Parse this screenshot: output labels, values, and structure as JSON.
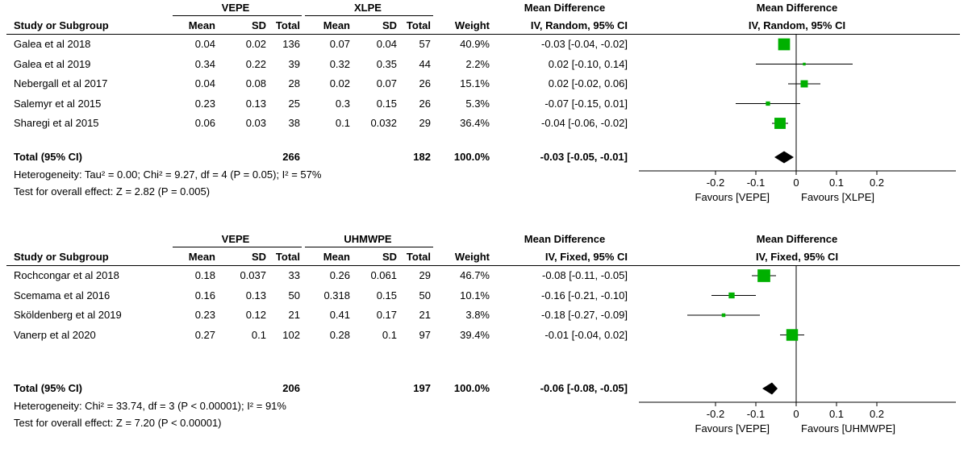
{
  "chart_data": [
    {
      "type": "forest",
      "group_headers": [
        "VEPE",
        "XLPE"
      ],
      "headers": {
        "md_title": "Mean Difference",
        "study": "Study or Subgroup",
        "mean": "Mean",
        "sd": "SD",
        "total": "Total",
        "weight": "Weight",
        "md_method": "IV, Random, 95% CI"
      },
      "plot_header": {
        "title": "Mean Difference",
        "method": "IV, Random, 95% CI"
      },
      "studies": [
        {
          "name": "Galea et al 2018",
          "e_mean": "0.04",
          "e_sd": "0.02",
          "e_total": "136",
          "c_mean": "0.07",
          "c_sd": "0.04",
          "c_total": "57",
          "weight": "40.9%",
          "ci_text": "-0.03 [-0.04, -0.02]",
          "md": -0.03,
          "lo": -0.04,
          "hi": -0.02,
          "w": 40.9
        },
        {
          "name": "Galea et al 2019",
          "e_mean": "0.34",
          "e_sd": "0.22",
          "e_total": "39",
          "c_mean": "0.32",
          "c_sd": "0.35",
          "c_total": "44",
          "weight": "2.2%",
          "ci_text": "0.02 [-0.10, 0.14]",
          "md": 0.02,
          "lo": -0.1,
          "hi": 0.14,
          "w": 2.2
        },
        {
          "name": "Nebergall et al 2017",
          "e_mean": "0.04",
          "e_sd": "0.08",
          "e_total": "28",
          "c_mean": "0.02",
          "c_sd": "0.07",
          "c_total": "26",
          "weight": "15.1%",
          "ci_text": "0.02 [-0.02, 0.06]",
          "md": 0.02,
          "lo": -0.02,
          "hi": 0.06,
          "w": 15.1
        },
        {
          "name": "Salemyr et al 2015",
          "e_mean": "0.23",
          "e_sd": "0.13",
          "e_total": "25",
          "c_mean": "0.3",
          "c_sd": "0.15",
          "c_total": "26",
          "weight": "5.3%",
          "ci_text": "-0.07 [-0.15, 0.01]",
          "md": -0.07,
          "lo": -0.15,
          "hi": 0.01,
          "w": 5.3
        },
        {
          "name": "Sharegi et al 2015",
          "e_mean": "0.06",
          "e_sd": "0.03",
          "e_total": "38",
          "c_mean": "0.1",
          "c_sd": "0.032",
          "c_total": "29",
          "weight": "36.4%",
          "ci_text": "-0.04 [-0.06, -0.02]",
          "md": -0.04,
          "lo": -0.06,
          "hi": -0.02,
          "w": 36.4
        }
      ],
      "total": {
        "label": "Total (95% CI)",
        "e_total": "266",
        "c_total": "182",
        "weight": "100.0%",
        "ci_text": "-0.03 [-0.05, -0.01]",
        "md": -0.03,
        "lo": -0.05,
        "hi": -0.01
      },
      "heterogeneity": "Heterogeneity: Tau² = 0.00; Chi² = 9.27, df = 4 (P = 0.05); I² = 57%",
      "overall": "Test for overall effect: Z = 2.82 (P = 0.005)",
      "axis": {
        "ticks": [
          -0.2,
          -0.1,
          0,
          0.1,
          0.2
        ],
        "tick_labels": [
          "-0.2",
          "-0.1",
          "0",
          "0.1",
          "0.2"
        ],
        "xlim": [
          -0.3,
          0.3
        ]
      },
      "favours_left": "Favours [VEPE]",
      "favours_right": "Favours [XLPE]",
      "colors": {
        "marker": "#00b000",
        "diamond": "#000000"
      }
    },
    {
      "type": "forest",
      "group_headers": [
        "VEPE",
        "UHMWPE"
      ],
      "headers": {
        "md_title": "Mean Difference",
        "study": "Study or Subgroup",
        "mean": "Mean",
        "sd": "SD",
        "total": "Total",
        "weight": "Weight",
        "md_method": "IV, Fixed, 95% CI"
      },
      "plot_header": {
        "title": "Mean Difference",
        "method": "IV, Fixed, 95% CI"
      },
      "studies": [
        {
          "name": "Rochcongar et al 2018",
          "e_mean": "0.18",
          "e_sd": "0.037",
          "e_total": "33",
          "c_mean": "0.26",
          "c_sd": "0.061",
          "c_total": "29",
          "weight": "46.7%",
          "ci_text": "-0.08 [-0.11, -0.05]",
          "md": -0.08,
          "lo": -0.11,
          "hi": -0.05,
          "w": 46.7
        },
        {
          "name": "Scemama et al 2016",
          "e_mean": "0.16",
          "e_sd": "0.13",
          "e_total": "50",
          "c_mean": "0.318",
          "c_sd": "0.15",
          "c_total": "50",
          "weight": "10.1%",
          "ci_text": "-0.16 [-0.21, -0.10]",
          "md": -0.16,
          "lo": -0.21,
          "hi": -0.1,
          "w": 10.1
        },
        {
          "name": "Sköldenberg et al 2019",
          "e_mean": "0.23",
          "e_sd": "0.12",
          "e_total": "21",
          "c_mean": "0.41",
          "c_sd": "0.17",
          "c_total": "21",
          "weight": "3.8%",
          "ci_text": "-0.18 [-0.27, -0.09]",
          "md": -0.18,
          "lo": -0.27,
          "hi": -0.09,
          "w": 3.8
        },
        {
          "name": "Vanerp et al 2020",
          "e_mean": "0.27",
          "e_sd": "0.1",
          "e_total": "102",
          "c_mean": "0.28",
          "c_sd": "0.1",
          "c_total": "97",
          "weight": "39.4%",
          "ci_text": "-0.01 [-0.04, 0.02]",
          "md": -0.01,
          "lo": -0.04,
          "hi": 0.02,
          "w": 39.4
        }
      ],
      "total": {
        "label": "Total (95% CI)",
        "e_total": "206",
        "c_total": "197",
        "weight": "100.0%",
        "ci_text": "-0.06 [-0.08, -0.05]",
        "md": -0.06,
        "lo": -0.08,
        "hi": -0.05
      },
      "heterogeneity": "Heterogeneity: Chi² = 33.74, df = 3 (P < 0.00001); I² = 91%",
      "overall": "Test for overall effect: Z = 7.20 (P < 0.00001)",
      "axis": {
        "ticks": [
          -0.2,
          -0.1,
          0,
          0.1,
          0.2
        ],
        "tick_labels": [
          "-0.2",
          "-0.1",
          "0",
          "0.1",
          "0.2"
        ],
        "xlim": [
          -0.3,
          0.3
        ]
      },
      "favours_left": "Favours [VEPE]",
      "favours_right": "Favours [UHMWPE]",
      "colors": {
        "marker": "#00b000",
        "diamond": "#000000"
      }
    }
  ]
}
